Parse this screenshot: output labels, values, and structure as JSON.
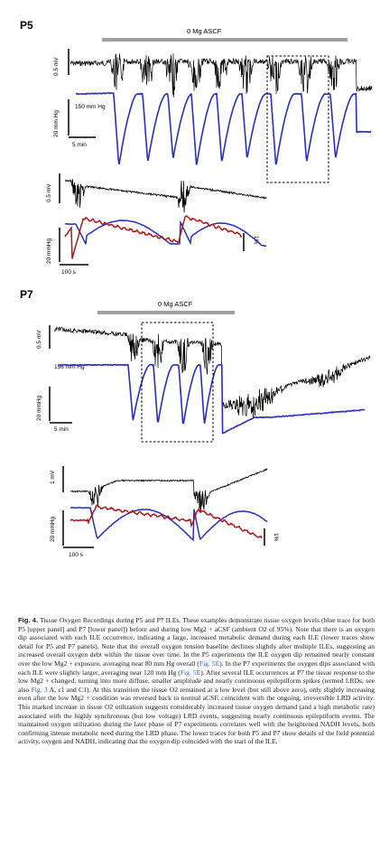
{
  "figure": {
    "panel_p5": {
      "label": "P5",
      "condition_label": "0 Mg ASCF",
      "scale_voltage": "0.5 mV",
      "scale_pressure": "20 mm Hg",
      "baseline_o2": "150 mm Hg",
      "scale_time": "5 min",
      "detail": {
        "scale_voltage": "0.5 mV",
        "scale_pressure": "20 mmHg",
        "scale_time": "100 s",
        "scale_nadh": "1%"
      }
    },
    "panel_p7": {
      "label": "P7",
      "condition_label": "0 Mg ASCF",
      "scale_voltage": "0.5 mV",
      "scale_pressure": "20 mmHg",
      "baseline_o2": "156 mm Hg",
      "scale_time": "5 min",
      "detail": {
        "scale_voltage": "1 mV",
        "scale_pressure": "20 mmHg",
        "scale_time": "100 s",
        "scale_nadh": "1%"
      }
    },
    "colors": {
      "field_potential": "#000000",
      "oxygen": "#2b2fc0",
      "nadh": "#b01818",
      "condition_bar": "#a0a0a0"
    }
  },
  "caption": {
    "label": "Fig. 4.",
    "title": "Tissue Oxygen Recordings during P5 and P7 ILEs.",
    "s1": " These examples demonstrate tissue oxygen levels (blue trace for both P5 [upper panel] and P7 [lower panel]) before and during low Mg2 + aCSF (ambient O2 of 95%). Note that there is an oxygen dip associated with each ILE occurrence, indicating a large, increased metabolic demand during each ILE (lower traces show detail for P5 and P7 panels). Note that the overall oxygen tension baseline declines slightly after multiple ILEs, suggesting an increased overall oxygen debt within the tissue over time. In the P5 experiments the ILE oxygen dip remained nearly constant over the low Mg2 + exposure, averaging near 80 mm Hg overall (",
    "ref1": "Fig. 5E",
    "s2": "). In the P7 experiments the oxygen dips associated with each ILE were slightly larger, averaging near 120 mm Hg (",
    "ref2": "Fig. 5E",
    "s3": "). After several ILE occurrences at P7 the tissue response to the low Mg2 + changed, turning into more diffuse, smaller amplitude and nearly continuous epileptiform spikes (termed LRDs, see also ",
    "ref3": "Fig. 3",
    "s4": " A, c1 and C1). At this transition the tissue O2 remained at a low level (but still above zero), only slightly increasing even after the low Mg2 + condition was reversed back to normal aCSF, coincident with the ongoing, irreversible LRD activity. This marked increase in tissue O2 utilization suggests considerably increased tissue oxygen demand (and a high metabolic rate) associated with the highly synchronous (but low voltage) LRD events, suggesting nearly continuous epileptiform events. The maintained oxygen utilization during the later phase of P7 experiments correlates well with the heightened NADH levels, both confirming intense metabolic need during the LRD phase. The lower traces for both P5 and P7 show details of the field potential activity, oxygen and NADH, indicating that the oxygen dip coincided with the start of the ILE."
  }
}
